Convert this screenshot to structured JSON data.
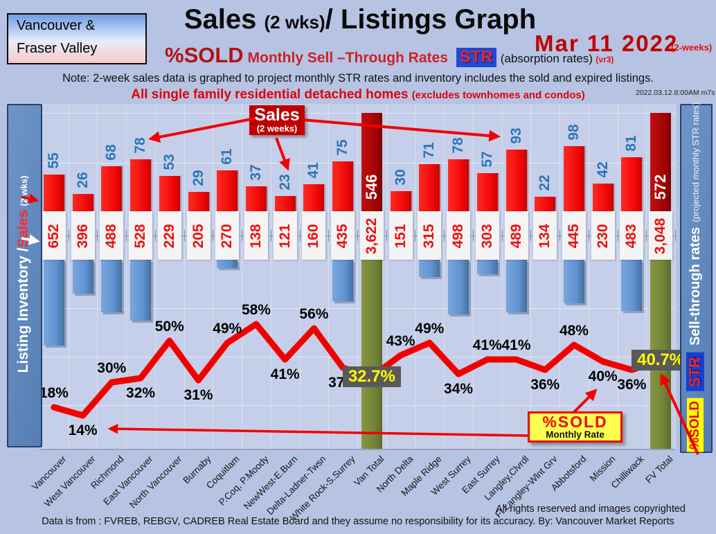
{
  "header": {
    "region_line1": "Vancouver &",
    "region_line2": "Fraser Valley",
    "title": "Sales ",
    "title_small": "(2 wks)",
    "title_rest": "/ Listings Graph",
    "date": "Mar  11  2022",
    "date_suffix": "(2-weeks)",
    "subtitle": {
      "pct_sold": "%SOLD",
      "rates": " Monthly Sell –Through Rates ",
      "str_chip": "STR",
      "absorption": "(absorption rates)",
      "version": "(vr3)"
    },
    "note": "Note: 2-week sales data is graphed to project monthly STR rates and inventory includes the sold and expired listings.",
    "scope": "All single family residential detached homes ",
    "scope_paren": "(excludes townhomes and condos)",
    "timestamp": "2022.03.12.8:00AM m7s"
  },
  "left_axis": {
    "label_main": "Listing Inventory / ",
    "label_sales": "Sales",
    "label_suffix": "(2  wks)"
  },
  "right_axis": {
    "pct_sold_chip": "%SOLD",
    "str_chip": "STR",
    "label_main": "Sell-through rates",
    "label_paren": "(projected monthly STR rates)"
  },
  "annotations": {
    "sales_callout_title": "Sales",
    "sales_callout_sub": "(2 weeks)",
    "pct_sold_box_title": "%SOLD",
    "pct_sold_box_sub": "Monthly Rate"
  },
  "footer": {
    "rights": "All rights reserved and  images copyrighted",
    "source": "Data is from : FVREB, REBGV, CADREB Real Estate Board and they assume no responsibility for its accuracy. By: Vancouver Market Reports"
  },
  "colors": {
    "sales_bar": "#ee0c0c",
    "total_bar": "#a80404",
    "inventory_bar": "#6093d2",
    "total_inventory_bar": "#75853a",
    "str_line": "#f20000",
    "sales_value_text": "#2e74b5",
    "inventory_value_text": "#f20d0d",
    "highlight_box_bg": "#595959",
    "highlight_box_text": "#ffff00",
    "sidebar": "#5f88bd"
  },
  "chart_data": {
    "type": "combo",
    "title": "Sales (2 wks) / Listings Graph — %SOLD Monthly Sell-Through Rates (STR), Mar 11 2022",
    "categories": [
      "Vancouver",
      "West Vancouver",
      "Richmond",
      "East Vancouver",
      "North Vancouver",
      "Burnaby",
      "Coquitlam",
      "P.Coq, P.Moody",
      "NewWest-E.Burn",
      "Delta-Ladner-Twsn",
      "White Rock-S.Surrey",
      "Van Total",
      "North Delta",
      "Maple Ridge",
      "West Surrey",
      "East Surrey",
      "Langley,Clvrdl",
      "Ft Langley-Wlnt Grv",
      "Abbotsford",
      "Mission",
      "Chilliwack",
      "FV Total"
    ],
    "series": [
      {
        "name": "Sales (2 weeks)",
        "type": "bar",
        "color": "#ee0c0c",
        "values": [
          55,
          26,
          68,
          78,
          53,
          29,
          61,
          37,
          23,
          41,
          75,
          546,
          30,
          71,
          78,
          57,
          93,
          22,
          98,
          42,
          81,
          572
        ]
      },
      {
        "name": "Listing Inventory (incl. sold & expired)",
        "type": "bar",
        "color": "#6093d2",
        "values": [
          652,
          396,
          488,
          528,
          229,
          205,
          270,
          138,
          121,
          160,
          435,
          3622,
          151,
          315,
          498,
          303,
          489,
          134,
          445,
          230,
          483,
          3048
        ]
      },
      {
        "name": "%SOLD Monthly Sell-Through Rate",
        "type": "line",
        "color": "#f20000",
        "unit": "%",
        "values": [
          18,
          14,
          30,
          32,
          50,
          31,
          49,
          58,
          41,
          56,
          37,
          32.7,
          43,
          49,
          34,
          41,
          41,
          36,
          48,
          40,
          36,
          40.7
        ]
      }
    ],
    "pct_label_side": [
      "above",
      "below",
      "above",
      "below",
      "above",
      "below",
      "above",
      "above",
      "below",
      "above",
      "below",
      "box",
      "above",
      "above",
      "below",
      "above",
      "above",
      "below",
      "above",
      "below",
      "below",
      "box"
    ],
    "total_columns": [
      "Van Total",
      "FV Total"
    ],
    "highlighted_totals": [
      {
        "label": "Van Total",
        "value": "32.7%"
      },
      {
        "label": "FV Total",
        "value": "40.7%"
      }
    ],
    "legend_position": "none",
    "grid": true,
    "x_labels_rotated_degrees": 45
  }
}
